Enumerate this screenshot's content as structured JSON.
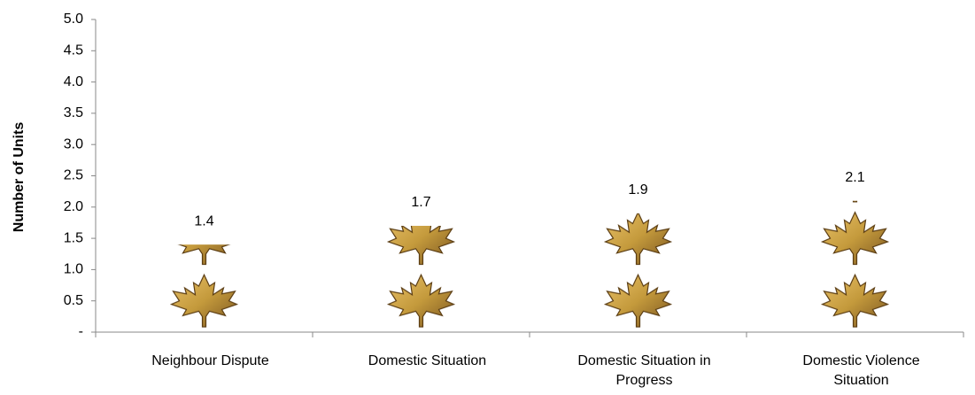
{
  "chart_data": {
    "type": "pictograph",
    "y_label": "Number of Units",
    "categories": [
      "Neighbour Dispute",
      "Domestic Situation",
      "Domestic Situation in Progress",
      "Domestic Violence Situation"
    ],
    "values": [
      1.4,
      1.7,
      1.9,
      2.1
    ],
    "color": "#c49a3c",
    "ylim": [
      0,
      5
    ],
    "yticks": [
      {
        "value": 0,
        "label": "-"
      },
      0.5,
      {
        "value": 1,
        "label": "1.0"
      },
      1.5,
      {
        "value": 2,
        "label": "2.0"
      },
      2.5,
      {
        "value": 3,
        "label": "3.0"
      },
      3.5,
      {
        "value": 4,
        "label": "4.0"
      },
      4.5,
      {
        "value": 5,
        "label": "5.0"
      }
    ],
    "grid": false
  }
}
